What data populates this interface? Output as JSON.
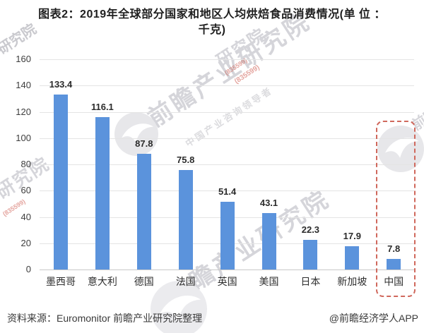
{
  "title": {
    "line1": "图表2：2019年全球部分国家和地区人均烘焙食品消费情况(单 位 ：",
    "line2": "千克)"
  },
  "chart_data": {
    "type": "bar",
    "title": "2019年全球部分国家和地区人均烘焙食品消费情况",
    "unit": "千克",
    "categories": [
      "墨西哥",
      "意大利",
      "德国",
      "法国",
      "英国",
      "美国",
      "日本",
      "新加坡",
      "中国"
    ],
    "values": [
      133.4,
      116.1,
      87.8,
      75.8,
      51.4,
      43.1,
      22.3,
      17.9,
      7.8
    ],
    "xlabel": "",
    "ylabel": "",
    "ylim": [
      0,
      160
    ],
    "ytick_step": 20,
    "grid": true,
    "legend": "none",
    "bar_color": "#5b93dc",
    "highlight": {
      "category": "中国",
      "style": "dashed-box",
      "color": "#d0685c"
    }
  },
  "footer": {
    "source": "资料来源：Euromonitor 前瞻产业研究院整理",
    "credit": "@前瞻经济学人APP"
  },
  "watermarks": {
    "brand": "前瞻产业研究院",
    "brand_fragment": "前瞻产业",
    "fragment": "研究院",
    "tagline": "中国产业咨询领导者",
    "code": "(835599)"
  }
}
